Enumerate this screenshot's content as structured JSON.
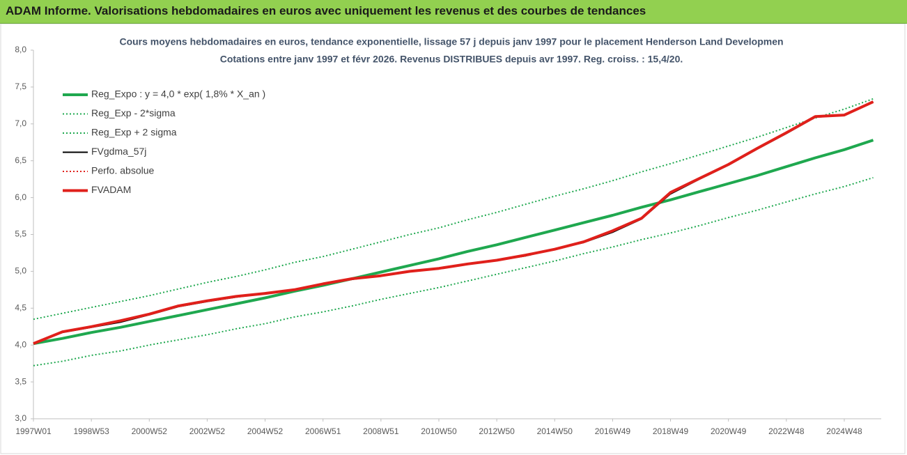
{
  "title": "ADAM Informe. Valorisations hebdomadaires en euros avec uniquement les revenus et des courbes de tendances",
  "chart_data": {
    "type": "line",
    "subtitle": [
      "Cours moyens hebdomadaires en euros, tendance exponentielle, lissage 57 j depuis janv 1997 pour le placement Henderson Land Developmen",
      "Cotations entre janv 1997 et févr 2026. Revenus DISTRIBUES depuis avr 1997. Reg. croiss. : 15,4/20."
    ],
    "categories": [
      "1997W01",
      null,
      "1998W53",
      null,
      "2000W52",
      null,
      "2002W52",
      null,
      "2004W52",
      null,
      "2006W51",
      null,
      "2008W51",
      null,
      "2010W50",
      null,
      "2012W50",
      null,
      "2014W50",
      null,
      "2016W49",
      null,
      "2018W49",
      null,
      "2020W49",
      null,
      "2022W48",
      null,
      "2024W48",
      null
    ],
    "ylim": [
      3,
      8
    ],
    "yticks": [
      {
        "value": 3,
        "label": "3,0"
      },
      {
        "value": 3.5,
        "label": "3,5"
      },
      {
        "value": 4,
        "label": "4,0"
      },
      {
        "value": 4.5,
        "label": "4,5"
      },
      {
        "value": 5,
        "label": "5,0"
      },
      {
        "value": 5.5,
        "label": "5,5"
      },
      {
        "value": 6,
        "label": "6,0"
      },
      {
        "value": 6.5,
        "label": "6,5"
      },
      {
        "value": 7,
        "label": "7,0"
      },
      {
        "value": 7.5,
        "label": "7,5"
      },
      {
        "value": 8,
        "label": "8,0"
      }
    ],
    "grid": false,
    "legend": "top-left",
    "series": [
      {
        "name": "Reg_Expo : y = 4,0 * exp( 1,8% *  X_an )",
        "color": "#1fa84f",
        "style": "solid",
        "width": 4,
        "values": [
          4.02,
          4.09,
          4.17,
          4.24,
          4.32,
          4.4,
          4.48,
          4.56,
          4.64,
          4.73,
          4.81,
          4.9,
          4.99,
          5.08,
          5.17,
          5.27,
          5.36,
          5.46,
          5.56,
          5.66,
          5.76,
          5.87,
          5.97,
          6.08,
          6.19,
          6.3,
          6.42,
          6.54,
          6.65,
          6.78
        ]
      },
      {
        "name": "Reg_Exp - 2*sigma",
        "color": "#1fa84f",
        "style": "dotted",
        "width": 2,
        "values": [
          3.72,
          3.78,
          3.86,
          3.92,
          4.0,
          4.07,
          4.14,
          4.22,
          4.29,
          4.38,
          4.45,
          4.53,
          4.62,
          4.7,
          4.78,
          4.87,
          4.96,
          5.05,
          5.14,
          5.24,
          5.33,
          5.43,
          5.52,
          5.62,
          5.73,
          5.83,
          5.94,
          6.05,
          6.15,
          6.27
        ]
      },
      {
        "name": "Reg_Exp + 2 sigma",
        "color": "#1fa84f",
        "style": "dotted",
        "width": 2,
        "values": [
          4.35,
          4.43,
          4.51,
          4.59,
          4.67,
          4.76,
          4.85,
          4.93,
          5.02,
          5.12,
          5.2,
          5.3,
          5.4,
          5.5,
          5.59,
          5.7,
          5.8,
          5.91,
          6.02,
          6.12,
          6.23,
          6.35,
          6.46,
          6.58,
          6.7,
          6.82,
          6.95,
          7.08,
          7.2,
          7.34
        ]
      },
      {
        "name": "FVgdma_57j",
        "color": "#000000",
        "style": "solid",
        "width": 2,
        "values": [
          4.02,
          4.17,
          4.24,
          4.31,
          4.41,
          4.52,
          4.59,
          4.65,
          4.7,
          4.75,
          4.83,
          4.89,
          4.94,
          5.0,
          5.04,
          5.1,
          5.15,
          5.21,
          5.3,
          5.39,
          5.53,
          5.71,
          6.05,
          6.25,
          6.44,
          6.66,
          6.87,
          7.09,
          7.12,
          7.3
        ]
      },
      {
        "name": "Perfo. absolue",
        "color": "#e0201b",
        "style": "dotted",
        "width": 2,
        "values": [
          4.02,
          4.18,
          4.25,
          4.33,
          4.42,
          4.53,
          4.6,
          4.66,
          4.7,
          4.75,
          4.83,
          4.9,
          4.94,
          5.0,
          5.04,
          5.1,
          5.15,
          5.22,
          5.3,
          5.4,
          5.55,
          5.72,
          6.07,
          6.26,
          6.45,
          6.67,
          6.88,
          7.1,
          7.12,
          7.3
        ]
      },
      {
        "name": "FVADAM",
        "color": "#e0201b",
        "style": "solid",
        "width": 4,
        "values": [
          4.02,
          4.18,
          4.25,
          4.33,
          4.42,
          4.53,
          4.6,
          4.66,
          4.7,
          4.75,
          4.83,
          4.9,
          4.94,
          5.0,
          5.04,
          5.1,
          5.15,
          5.22,
          5.3,
          5.4,
          5.55,
          5.72,
          6.07,
          6.26,
          6.45,
          6.67,
          6.88,
          7.1,
          7.12,
          7.3
        ]
      }
    ]
  }
}
